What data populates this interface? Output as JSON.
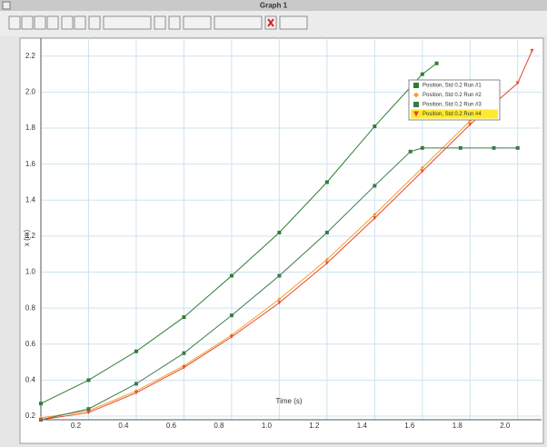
{
  "window": {
    "title": "Graph 1"
  },
  "chart_data": {
    "type": "line",
    "xlabel": "Time (s)",
    "ylabel": "x (m)",
    "xlim": [
      0,
      2.1
    ],
    "ylim": [
      0.18,
      2.3
    ],
    "xticks": [
      0.2,
      0.4,
      0.6,
      0.8,
      {
        "value": 1,
        "label": "1.0"
      },
      1.2,
      1.4,
      1.6,
      1.8,
      {
        "value": 2,
        "label": "2.0"
      }
    ],
    "yticks": [
      0.2,
      0.4,
      0.6,
      0.8,
      {
        "value": 1,
        "label": "1.0"
      },
      1.2,
      1.4,
      1.6,
      1.8,
      {
        "value": 2,
        "label": "2.0"
      },
      2.2
    ],
    "grid": true,
    "legend": "upper right",
    "series": [
      {
        "name": "Position, Std 0.2 Run #1",
        "color": "#2e7d32",
        "marker": "square",
        "x": [
          0,
          0.2,
          0.4,
          0.6,
          0.8,
          1.0,
          1.2,
          1.4,
          1.6,
          1.66
        ],
        "values": [
          0.27,
          0.4,
          0.56,
          0.75,
          0.98,
          1.22,
          1.5,
          1.81,
          2.1,
          2.16
        ]
      },
      {
        "name": "Position, Std 0.2 Run #2",
        "color": "#f0a030",
        "marker": "diamond",
        "x": [
          0,
          0.2,
          0.4,
          0.6,
          0.8,
          1.0,
          1.2,
          1.4,
          1.6,
          1.8
        ],
        "values": [
          0.19,
          0.23,
          0.34,
          0.48,
          0.65,
          0.85,
          1.07,
          1.32,
          1.58,
          1.84
        ]
      },
      {
        "name": "Position, Std 0.2 Run #3",
        "color": "#3a7a4a",
        "marker": "square",
        "x": [
          0,
          0.2,
          0.4,
          0.6,
          0.8,
          1.0,
          1.2,
          1.4,
          1.55,
          1.6,
          1.76,
          1.9,
          2.0
        ],
        "values": [
          0.18,
          0.24,
          0.38,
          0.55,
          0.76,
          0.98,
          1.22,
          1.48,
          1.67,
          1.69,
          1.69,
          1.69,
          1.69
        ]
      },
      {
        "name": "Position, Std 0.2 Run #4",
        "color": "#e8452c",
        "marker": "triangle",
        "x": [
          0,
          0.2,
          0.4,
          0.6,
          0.8,
          1.0,
          1.2,
          1.4,
          1.6,
          1.8,
          2.0,
          2.06
        ],
        "values": [
          0.18,
          0.22,
          0.33,
          0.47,
          0.64,
          0.83,
          1.05,
          1.3,
          1.56,
          1.82,
          2.05,
          2.23
        ]
      }
    ]
  }
}
